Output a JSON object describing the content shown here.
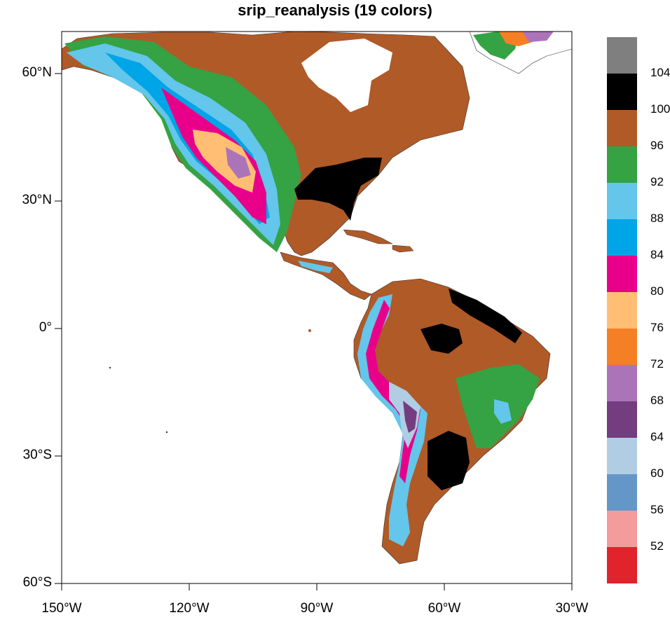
{
  "title": "srip_reanalysis (19 colors)",
  "map": {
    "projection": "cylindrical-equidistant",
    "lon_range": [
      -150,
      -30
    ],
    "lat_range": [
      -60,
      70
    ],
    "lat_ticks": [
      "60°N",
      "30°N",
      "0°",
      "30°S",
      "60°S"
    ],
    "lon_ticks": [
      "150°W",
      "120°W",
      "90°W",
      "60°W",
      "30°W"
    ],
    "ocean_color": "#ffffff",
    "background_field_color": "#b05a28"
  },
  "colorbar": {
    "labels": [
      "104",
      "100",
      "96",
      "92",
      "88",
      "84",
      "80",
      "76",
      "72",
      "68",
      "64",
      "60",
      "56",
      "52"
    ],
    "colors": [
      "#7f7f7f",
      "#000000",
      "#b05a28",
      "#35a244",
      "#63c6ea",
      "#00a5e8",
      "#e8008a",
      "#ffbe74",
      "#f57f25",
      "#ac74b8",
      "#733d7f",
      "#b1cde4",
      "#6497c8",
      "#f49b9b",
      "#e1232b"
    ]
  }
}
